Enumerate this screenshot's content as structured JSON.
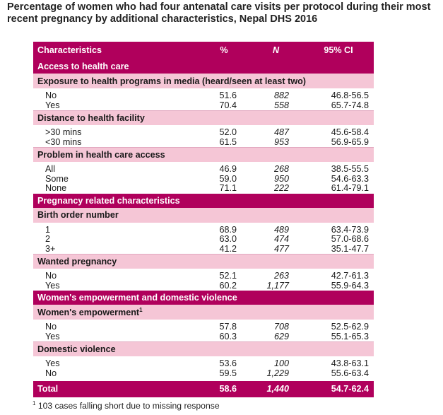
{
  "title": "Percentage of women who had four antenatal care visits per protocol during their most recent pregnancy by additional characteristics, Nepal DHS 2016",
  "header": {
    "characteristics": "Characteristics",
    "pct": "%",
    "n": "N",
    "ci": "95% CI"
  },
  "sections": [
    {
      "label": "Access to health care",
      "groups": [
        {
          "label": "Exposure to health programs in media (heard/seen at least two)",
          "sup": "",
          "rows": [
            {
              "label": "No",
              "pct": "51.6",
              "n": "882",
              "ci": "46.8-56.5"
            },
            {
              "label": "Yes",
              "pct": "70.4",
              "n": "558",
              "ci": "65.7-74.8"
            }
          ]
        },
        {
          "label": "Distance to health facility",
          "sup": "",
          "rows": [
            {
              "label": ">30 mins",
              "pct": "52.0",
              "n": "487",
              "ci": "45.6-58.4"
            },
            {
              "label": "<30 mins",
              "pct": "61.5",
              "n": "953",
              "ci": "56.9-65.9"
            }
          ]
        },
        {
          "label": "Problem in health care access",
          "sup": "",
          "rows": [
            {
              "label": "All",
              "pct": "46.9",
              "n": "268",
              "ci": "38.5-55.5"
            },
            {
              "label": "Some",
              "pct": "59.0",
              "n": "950",
              "ci": "54.6-63.3"
            },
            {
              "label": "None",
              "pct": "71.1",
              "n": "222",
              "ci": "61.4-79.1"
            }
          ]
        }
      ]
    },
    {
      "label": "Pregnancy related characteristics",
      "groups": [
        {
          "label": "Birth order number",
          "sup": "",
          "rows": [
            {
              "label": "1",
              "pct": "68.9",
              "n": "489",
              "ci": "63.4-73.9"
            },
            {
              "label": "2",
              "pct": "63.0",
              "n": "474",
              "ci": "57.0-68.6"
            },
            {
              "label": "3+",
              "pct": "41.2",
              "n": "477",
              "ci": "35.1-47.7"
            }
          ]
        },
        {
          "label": "Wanted pregnancy",
          "sup": "",
          "rows": [
            {
              "label": "No",
              "pct": "52.1",
              "n": "263",
              "ci": "42.7-61.3"
            },
            {
              "label": "Yes",
              "pct": "60.2",
              "n": "1,177",
              "ci": "55.9-64.3"
            }
          ]
        }
      ]
    },
    {
      "label": "Women's empowerment and domestic violence",
      "groups": [
        {
          "label": "Women's empowerment",
          "sup": "1",
          "rows": [
            {
              "label": "No",
              "pct": "57.8",
              "n": "708",
              "ci": "52.5-62.9"
            },
            {
              "label": "Yes",
              "pct": "60.3",
              "n": "629",
              "ci": "55.1-65.3"
            }
          ]
        },
        {
          "label": "Domestic violence",
          "sup": "",
          "rows": [
            {
              "label": "Yes",
              "pct": "53.6",
              "n": "100",
              "ci": "43.8-63.1"
            },
            {
              "label": "No",
              "pct": "59.5",
              "n": "1,229",
              "ci": "55.6-63.4"
            }
          ]
        }
      ]
    }
  ],
  "total": {
    "label": "Total",
    "pct": "58.6",
    "n": "1,440",
    "ci": "54.7-62.4"
  },
  "footnote": {
    "mark": "1",
    "text": " 103 cases falling short due to missing response"
  }
}
